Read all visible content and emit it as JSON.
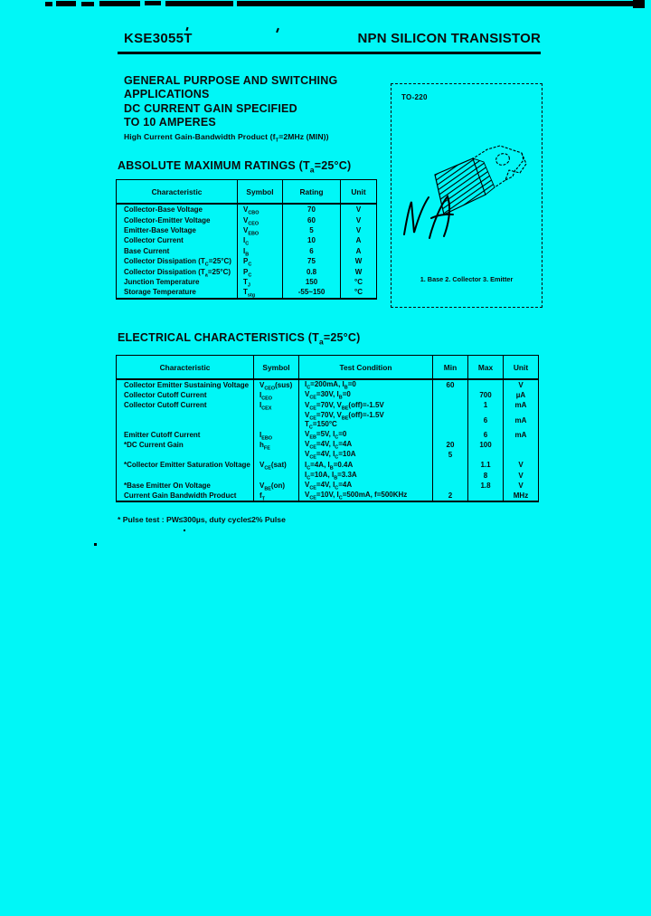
{
  "colors": {
    "background": "#00f7f7",
    "ink": "#0c0c0c"
  },
  "header": {
    "part_number": "KSE3055T",
    "device_type": "NPN SILICON TRANSISTOR"
  },
  "features": {
    "lines": [
      "GENERAL PURPOSE AND SWITCHING",
      "APPLICATIONS",
      "DC CURRENT GAIN SPECIFIED",
      "TO 10 AMPERES"
    ],
    "subline": "High Current Gain-Bandwidth Product (f_T=2MHz (MIN))"
  },
  "package_box": {
    "label": "TO-220",
    "caption": "1. Base  2. Collector  3. Emitter",
    "handwriting": "N/A",
    "sketch_icon": "to-220-package-sketch"
  },
  "abs_max": {
    "title": "ABSOLUTE MAXIMUM RATINGS (T_a=25°C)",
    "columns": [
      "Characteristic",
      "Symbol",
      "Rating",
      "Unit"
    ],
    "rows": [
      {
        "characteristic": "Collector-Base Voltage",
        "symbol": "V_CBO",
        "rating": "70",
        "unit": "V"
      },
      {
        "characteristic": "Collector-Emitter Voltage",
        "symbol": "V_CEO",
        "rating": "60",
        "unit": "V"
      },
      {
        "characteristic": "Emitter-Base Voltage",
        "symbol": "V_EBO",
        "rating": "5",
        "unit": "V"
      },
      {
        "characteristic": "Collector Current",
        "symbol": "I_C",
        "rating": "10",
        "unit": "A"
      },
      {
        "characteristic": "Base Current",
        "symbol": "I_B",
        "rating": "6",
        "unit": "A"
      },
      {
        "characteristic": "Collector Dissipation (T_C=25°C)",
        "symbol": "P_C",
        "rating": "75",
        "unit": "W"
      },
      {
        "characteristic": "Collector Dissipation (T_a=25°C)",
        "symbol": "P_C",
        "rating": "0.8",
        "unit": "W"
      },
      {
        "characteristic": "Junction Temperature",
        "symbol": "T_J",
        "rating": "150",
        "unit": "°C"
      },
      {
        "characteristic": "Storage Temperature",
        "symbol": "T_stg",
        "rating": "-55~150",
        "unit": "°C"
      }
    ]
  },
  "electrical": {
    "title": "ELECTRICAL CHARACTERISTICS (T_a=25°C)",
    "columns": [
      "Characteristic",
      "Symbol",
      "Test Condition",
      "Min",
      "Max",
      "Unit"
    ],
    "rows": [
      {
        "characteristic": "Collector Emitter Sustaining Voltage",
        "symbol": "V_CEO(sus)",
        "conditions": [
          "I_C=200mA, I_B=0"
        ],
        "min": "60",
        "max": "",
        "unit": "V"
      },
      {
        "characteristic": "Collector Cutoff Current",
        "symbol": "I_CEO",
        "conditions": [
          "V_CE=30V, I_B=0"
        ],
        "min": "",
        "max": "700",
        "unit": "µA"
      },
      {
        "characteristic": "Collector Cutoff Current",
        "symbol": "I_CEX",
        "conditions": [
          "V_CE=70V, V_BE(off)=-1.5V"
        ],
        "min": "",
        "max": "1",
        "unit": "mA"
      },
      {
        "characteristic": "",
        "symbol": "",
        "conditions": [
          "V_CE=70V, V_BE(off)=-1.5V",
          "T_C=150°C"
        ],
        "min": "",
        "max": "6",
        "unit": "mA"
      },
      {
        "characteristic": "Emitter Cutoff Current",
        "symbol": "I_EBO",
        "conditions": [
          "V_EB=5V, I_C=0"
        ],
        "min": "",
        "max": "6",
        "unit": "mA"
      },
      {
        "characteristic": "*DC Current Gain",
        "symbol": "h_FE",
        "conditions": [
          "V_CE=4V, I_C=4A"
        ],
        "min": "20",
        "max": "100",
        "unit": ""
      },
      {
        "characteristic": "",
        "symbol": "",
        "conditions": [
          "V_CE=4V, I_C=10A"
        ],
        "min": "5",
        "max": "",
        "unit": ""
      },
      {
        "characteristic": "*Collector Emitter Saturation Voltage",
        "symbol": "V_CE(sat)",
        "conditions": [
          "I_C=4A, I_B=0.4A"
        ],
        "min": "",
        "max": "1.1",
        "unit": "V"
      },
      {
        "characteristic": "",
        "symbol": "",
        "conditions": [
          "I_C=10A, I_B=3.3A"
        ],
        "min": "",
        "max": "8",
        "unit": "V"
      },
      {
        "characteristic": "*Base Emitter On Voltage",
        "symbol": "V_BE(on)",
        "conditions": [
          "V_CE=4V, I_C=4A"
        ],
        "min": "",
        "max": "1.8",
        "unit": "V"
      },
      {
        "characteristic": "Current Gain Bandwidth Product",
        "symbol": "f_T",
        "conditions": [
          "V_CE=10V, I_C=500mA, f=500KHz"
        ],
        "min": "2",
        "max": "",
        "unit": "MHz"
      }
    ]
  },
  "footnote": "* Pulse test : PW≤300µs, duty cycle≤2% Pulse"
}
